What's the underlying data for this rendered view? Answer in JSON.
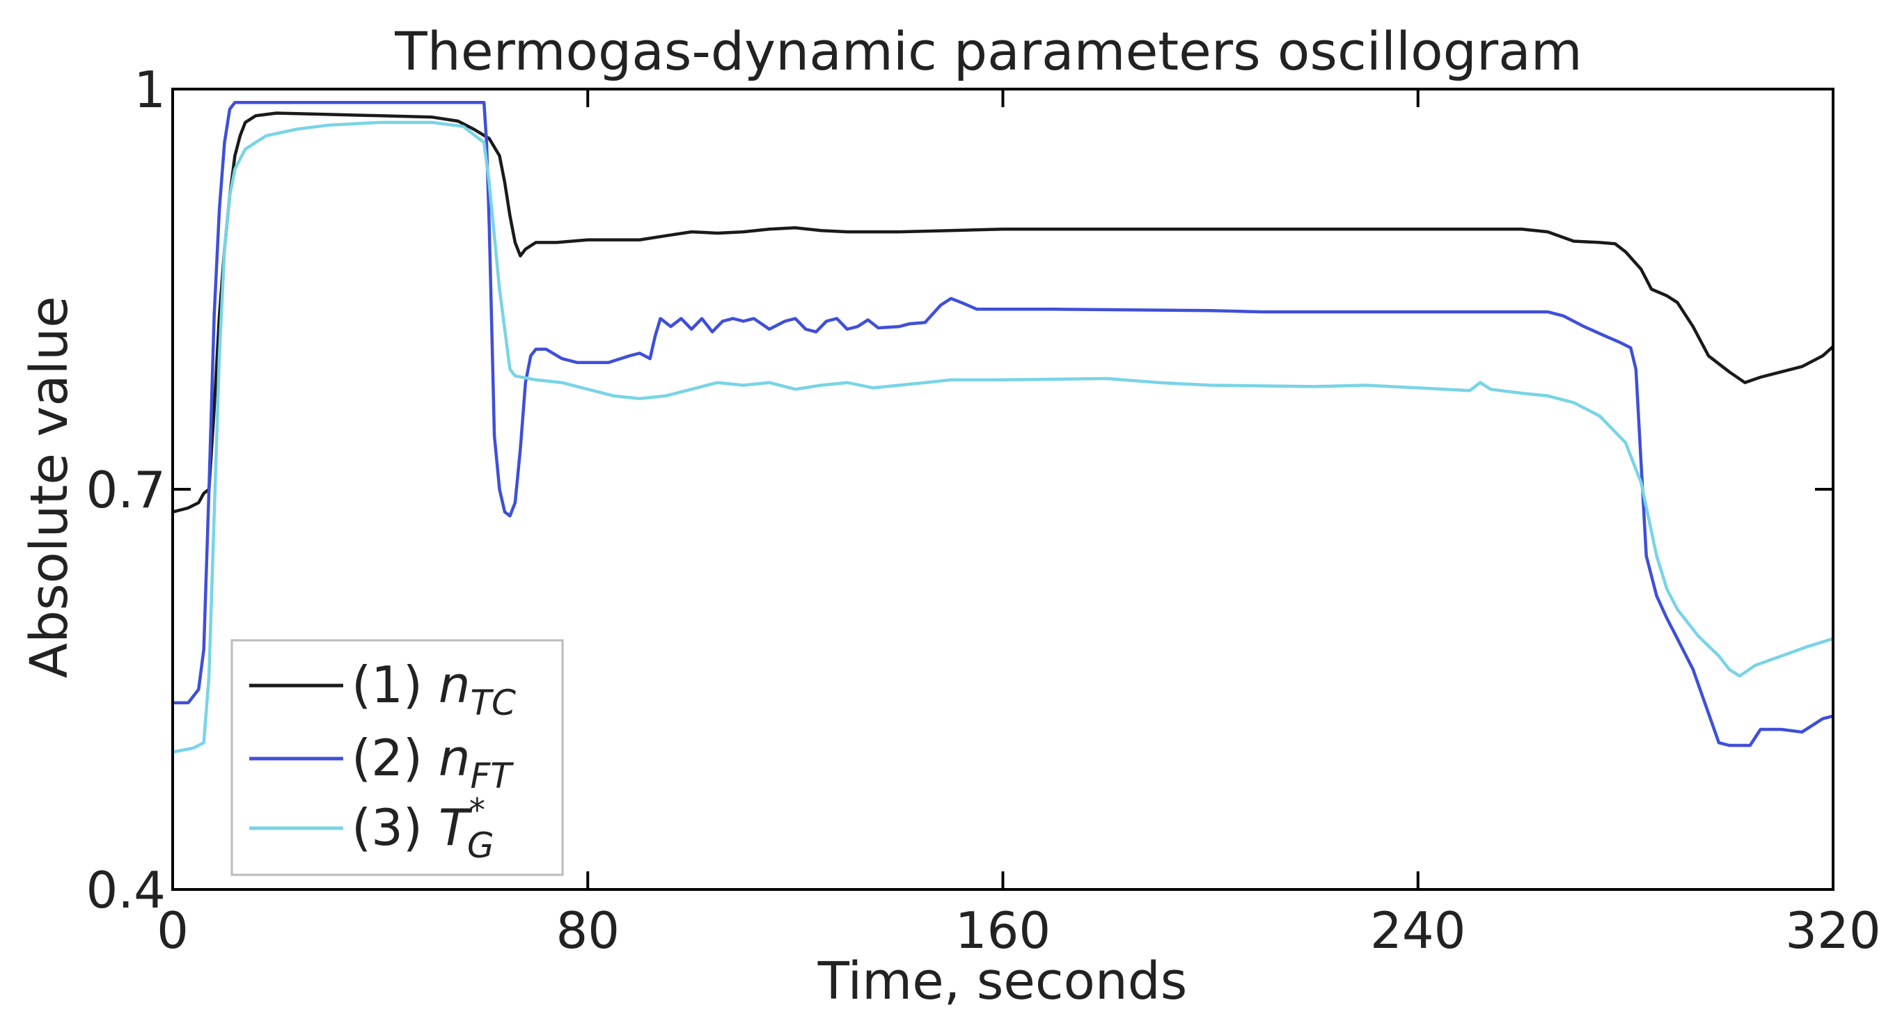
{
  "chart_data": {
    "type": "line",
    "title": "Thermogas-dynamic parameters oscillogram",
    "xlabel": "Time, seconds",
    "ylabel": "Absolute value",
    "xlim": [
      0,
      320
    ],
    "ylim": [
      0.4,
      1.0
    ],
    "xticks": [
      0,
      80,
      160,
      240,
      320
    ],
    "xtick_labels": [
      "0",
      "80",
      "160",
      "240",
      "320"
    ],
    "yticks": [
      0.4,
      0.7,
      1.0
    ],
    "ytick_labels": [
      "0.4",
      "0.7",
      "1"
    ],
    "grid": false,
    "legend_position": "bottom-left",
    "series": [
      {
        "label_prefix": "(1) ",
        "symbol": "n",
        "subscript": "TC",
        "superscript": "",
        "color": "#1a1a1a",
        "points": [
          [
            0,
            0.683
          ],
          [
            3,
            0.686
          ],
          [
            5,
            0.69
          ],
          [
            6,
            0.697
          ],
          [
            7,
            0.7
          ],
          [
            8,
            0.76
          ],
          [
            9,
            0.83
          ],
          [
            10,
            0.88
          ],
          [
            11,
            0.92
          ],
          [
            12,
            0.95
          ],
          [
            13,
            0.965
          ],
          [
            14,
            0.975
          ],
          [
            16,
            0.98
          ],
          [
            20,
            0.982
          ],
          [
            30,
            0.981
          ],
          [
            40,
            0.98
          ],
          [
            50,
            0.979
          ],
          [
            55,
            0.976
          ],
          [
            58,
            0.97
          ],
          [
            61,
            0.963
          ],
          [
            63,
            0.95
          ],
          [
            64,
            0.93
          ],
          [
            65,
            0.905
          ],
          [
            66,
            0.885
          ],
          [
            67,
            0.875
          ],
          [
            68,
            0.88
          ],
          [
            70,
            0.885
          ],
          [
            74,
            0.885
          ],
          [
            80,
            0.887
          ],
          [
            90,
            0.887
          ],
          [
            95,
            0.89
          ],
          [
            100,
            0.893
          ],
          [
            105,
            0.892
          ],
          [
            110,
            0.893
          ],
          [
            115,
            0.895
          ],
          [
            120,
            0.896
          ],
          [
            125,
            0.894
          ],
          [
            130,
            0.893
          ],
          [
            140,
            0.893
          ],
          [
            150,
            0.894
          ],
          [
            160,
            0.895
          ],
          [
            200,
            0.895
          ],
          [
            240,
            0.895
          ],
          [
            260,
            0.895
          ],
          [
            265,
            0.893
          ],
          [
            270,
            0.886
          ],
          [
            275,
            0.885
          ],
          [
            278,
            0.884
          ],
          [
            280,
            0.878
          ],
          [
            283,
            0.865
          ],
          [
            285,
            0.85
          ],
          [
            288,
            0.845
          ],
          [
            290,
            0.84
          ],
          [
            293,
            0.822
          ],
          [
            296,
            0.8
          ],
          [
            300,
            0.788
          ],
          [
            303,
            0.78
          ],
          [
            306,
            0.784
          ],
          [
            310,
            0.788
          ],
          [
            314,
            0.792
          ],
          [
            318,
            0.8
          ],
          [
            320,
            0.807
          ]
        ]
      },
      {
        "label_prefix": "(2) ",
        "symbol": "n",
        "subscript": "FT",
        "superscript": "",
        "color": "#3f4fd9",
        "points": [
          [
            0,
            0.54
          ],
          [
            3,
            0.54
          ],
          [
            5,
            0.55
          ],
          [
            6,
            0.58
          ],
          [
            7,
            0.7
          ],
          [
            8,
            0.83
          ],
          [
            9,
            0.91
          ],
          [
            10,
            0.96
          ],
          [
            11,
            0.985
          ],
          [
            12,
            0.99
          ],
          [
            20,
            0.99
          ],
          [
            40,
            0.99
          ],
          [
            50,
            0.99
          ],
          [
            56,
            0.99
          ],
          [
            60,
            0.99
          ],
          [
            60.5,
            0.96
          ],
          [
            61,
            0.9
          ],
          [
            61.5,
            0.82
          ],
          [
            62,
            0.74
          ],
          [
            63,
            0.7
          ],
          [
            64,
            0.683
          ],
          [
            65,
            0.68
          ],
          [
            66,
            0.69
          ],
          [
            67,
            0.73
          ],
          [
            68,
            0.78
          ],
          [
            69,
            0.8
          ],
          [
            70,
            0.805
          ],
          [
            72,
            0.805
          ],
          [
            75,
            0.798
          ],
          [
            78,
            0.795
          ],
          [
            84,
            0.795
          ],
          [
            88,
            0.8
          ],
          [
            90,
            0.802
          ],
          [
            92,
            0.798
          ],
          [
            93,
            0.815
          ],
          [
            94,
            0.828
          ],
          [
            96,
            0.822
          ],
          [
            98,
            0.828
          ],
          [
            100,
            0.82
          ],
          [
            102,
            0.828
          ],
          [
            104,
            0.818
          ],
          [
            106,
            0.826
          ],
          [
            108,
            0.828
          ],
          [
            110,
            0.826
          ],
          [
            112,
            0.828
          ],
          [
            115,
            0.82
          ],
          [
            118,
            0.826
          ],
          [
            120,
            0.828
          ],
          [
            122,
            0.82
          ],
          [
            124,
            0.818
          ],
          [
            126,
            0.826
          ],
          [
            128,
            0.828
          ],
          [
            130,
            0.82
          ],
          [
            132,
            0.822
          ],
          [
            134,
            0.827
          ],
          [
            136,
            0.821
          ],
          [
            140,
            0.822
          ],
          [
            142,
            0.824
          ],
          [
            145,
            0.825
          ],
          [
            148,
            0.838
          ],
          [
            150,
            0.843
          ],
          [
            152,
            0.84
          ],
          [
            155,
            0.835
          ],
          [
            158,
            0.835
          ],
          [
            170,
            0.835
          ],
          [
            200,
            0.834
          ],
          [
            210,
            0.833
          ],
          [
            240,
            0.833
          ],
          [
            265,
            0.833
          ],
          [
            268,
            0.83
          ],
          [
            272,
            0.822
          ],
          [
            276,
            0.815
          ],
          [
            279,
            0.81
          ],
          [
            281,
            0.806
          ],
          [
            282,
            0.79
          ],
          [
            283,
            0.72
          ],
          [
            284,
            0.65
          ],
          [
            286,
            0.62
          ],
          [
            288,
            0.603
          ],
          [
            290,
            0.588
          ],
          [
            293,
            0.565
          ],
          [
            296,
            0.532
          ],
          [
            298,
            0.51
          ],
          [
            300,
            0.508
          ],
          [
            302,
            0.508
          ],
          [
            304,
            0.508
          ],
          [
            306,
            0.52
          ],
          [
            310,
            0.52
          ],
          [
            314,
            0.518
          ],
          [
            318,
            0.528
          ],
          [
            320,
            0.53
          ]
        ]
      },
      {
        "label_prefix": "(3) ",
        "symbol": "T",
        "subscript": "G",
        "superscript": "*",
        "color": "#78d4e6",
        "points": [
          [
            0,
            0.503
          ],
          [
            4,
            0.506
          ],
          [
            6,
            0.51
          ],
          [
            7,
            0.56
          ],
          [
            8,
            0.68
          ],
          [
            9,
            0.8
          ],
          [
            10,
            0.88
          ],
          [
            11,
            0.92
          ],
          [
            12,
            0.94
          ],
          [
            14,
            0.955
          ],
          [
            18,
            0.965
          ],
          [
            24,
            0.97
          ],
          [
            30,
            0.973
          ],
          [
            40,
            0.975
          ],
          [
            50,
            0.975
          ],
          [
            56,
            0.972
          ],
          [
            60,
            0.96
          ],
          [
            61,
            0.93
          ],
          [
            62,
            0.89
          ],
          [
            63,
            0.85
          ],
          [
            64,
            0.82
          ],
          [
            65,
            0.79
          ],
          [
            66,
            0.785
          ],
          [
            70,
            0.782
          ],
          [
            75,
            0.78
          ],
          [
            80,
            0.775
          ],
          [
            85,
            0.77
          ],
          [
            90,
            0.768
          ],
          [
            95,
            0.77
          ],
          [
            100,
            0.775
          ],
          [
            105,
            0.78
          ],
          [
            110,
            0.778
          ],
          [
            115,
            0.78
          ],
          [
            120,
            0.775
          ],
          [
            125,
            0.778
          ],
          [
            130,
            0.78
          ],
          [
            135,
            0.776
          ],
          [
            140,
            0.778
          ],
          [
            145,
            0.78
          ],
          [
            150,
            0.782
          ],
          [
            160,
            0.782
          ],
          [
            180,
            0.783
          ],
          [
            190,
            0.78
          ],
          [
            200,
            0.778
          ],
          [
            220,
            0.777
          ],
          [
            230,
            0.778
          ],
          [
            240,
            0.776
          ],
          [
            250,
            0.774
          ],
          [
            252,
            0.78
          ],
          [
            254,
            0.775
          ],
          [
            260,
            0.772
          ],
          [
            265,
            0.77
          ],
          [
            270,
            0.765
          ],
          [
            275,
            0.755
          ],
          [
            280,
            0.735
          ],
          [
            283,
            0.705
          ],
          [
            286,
            0.65
          ],
          [
            288,
            0.625
          ],
          [
            290,
            0.61
          ],
          [
            294,
            0.59
          ],
          [
            298,
            0.575
          ],
          [
            300,
            0.565
          ],
          [
            302,
            0.56
          ],
          [
            305,
            0.568
          ],
          [
            310,
            0.575
          ],
          [
            315,
            0.582
          ],
          [
            320,
            0.588
          ]
        ]
      }
    ]
  }
}
